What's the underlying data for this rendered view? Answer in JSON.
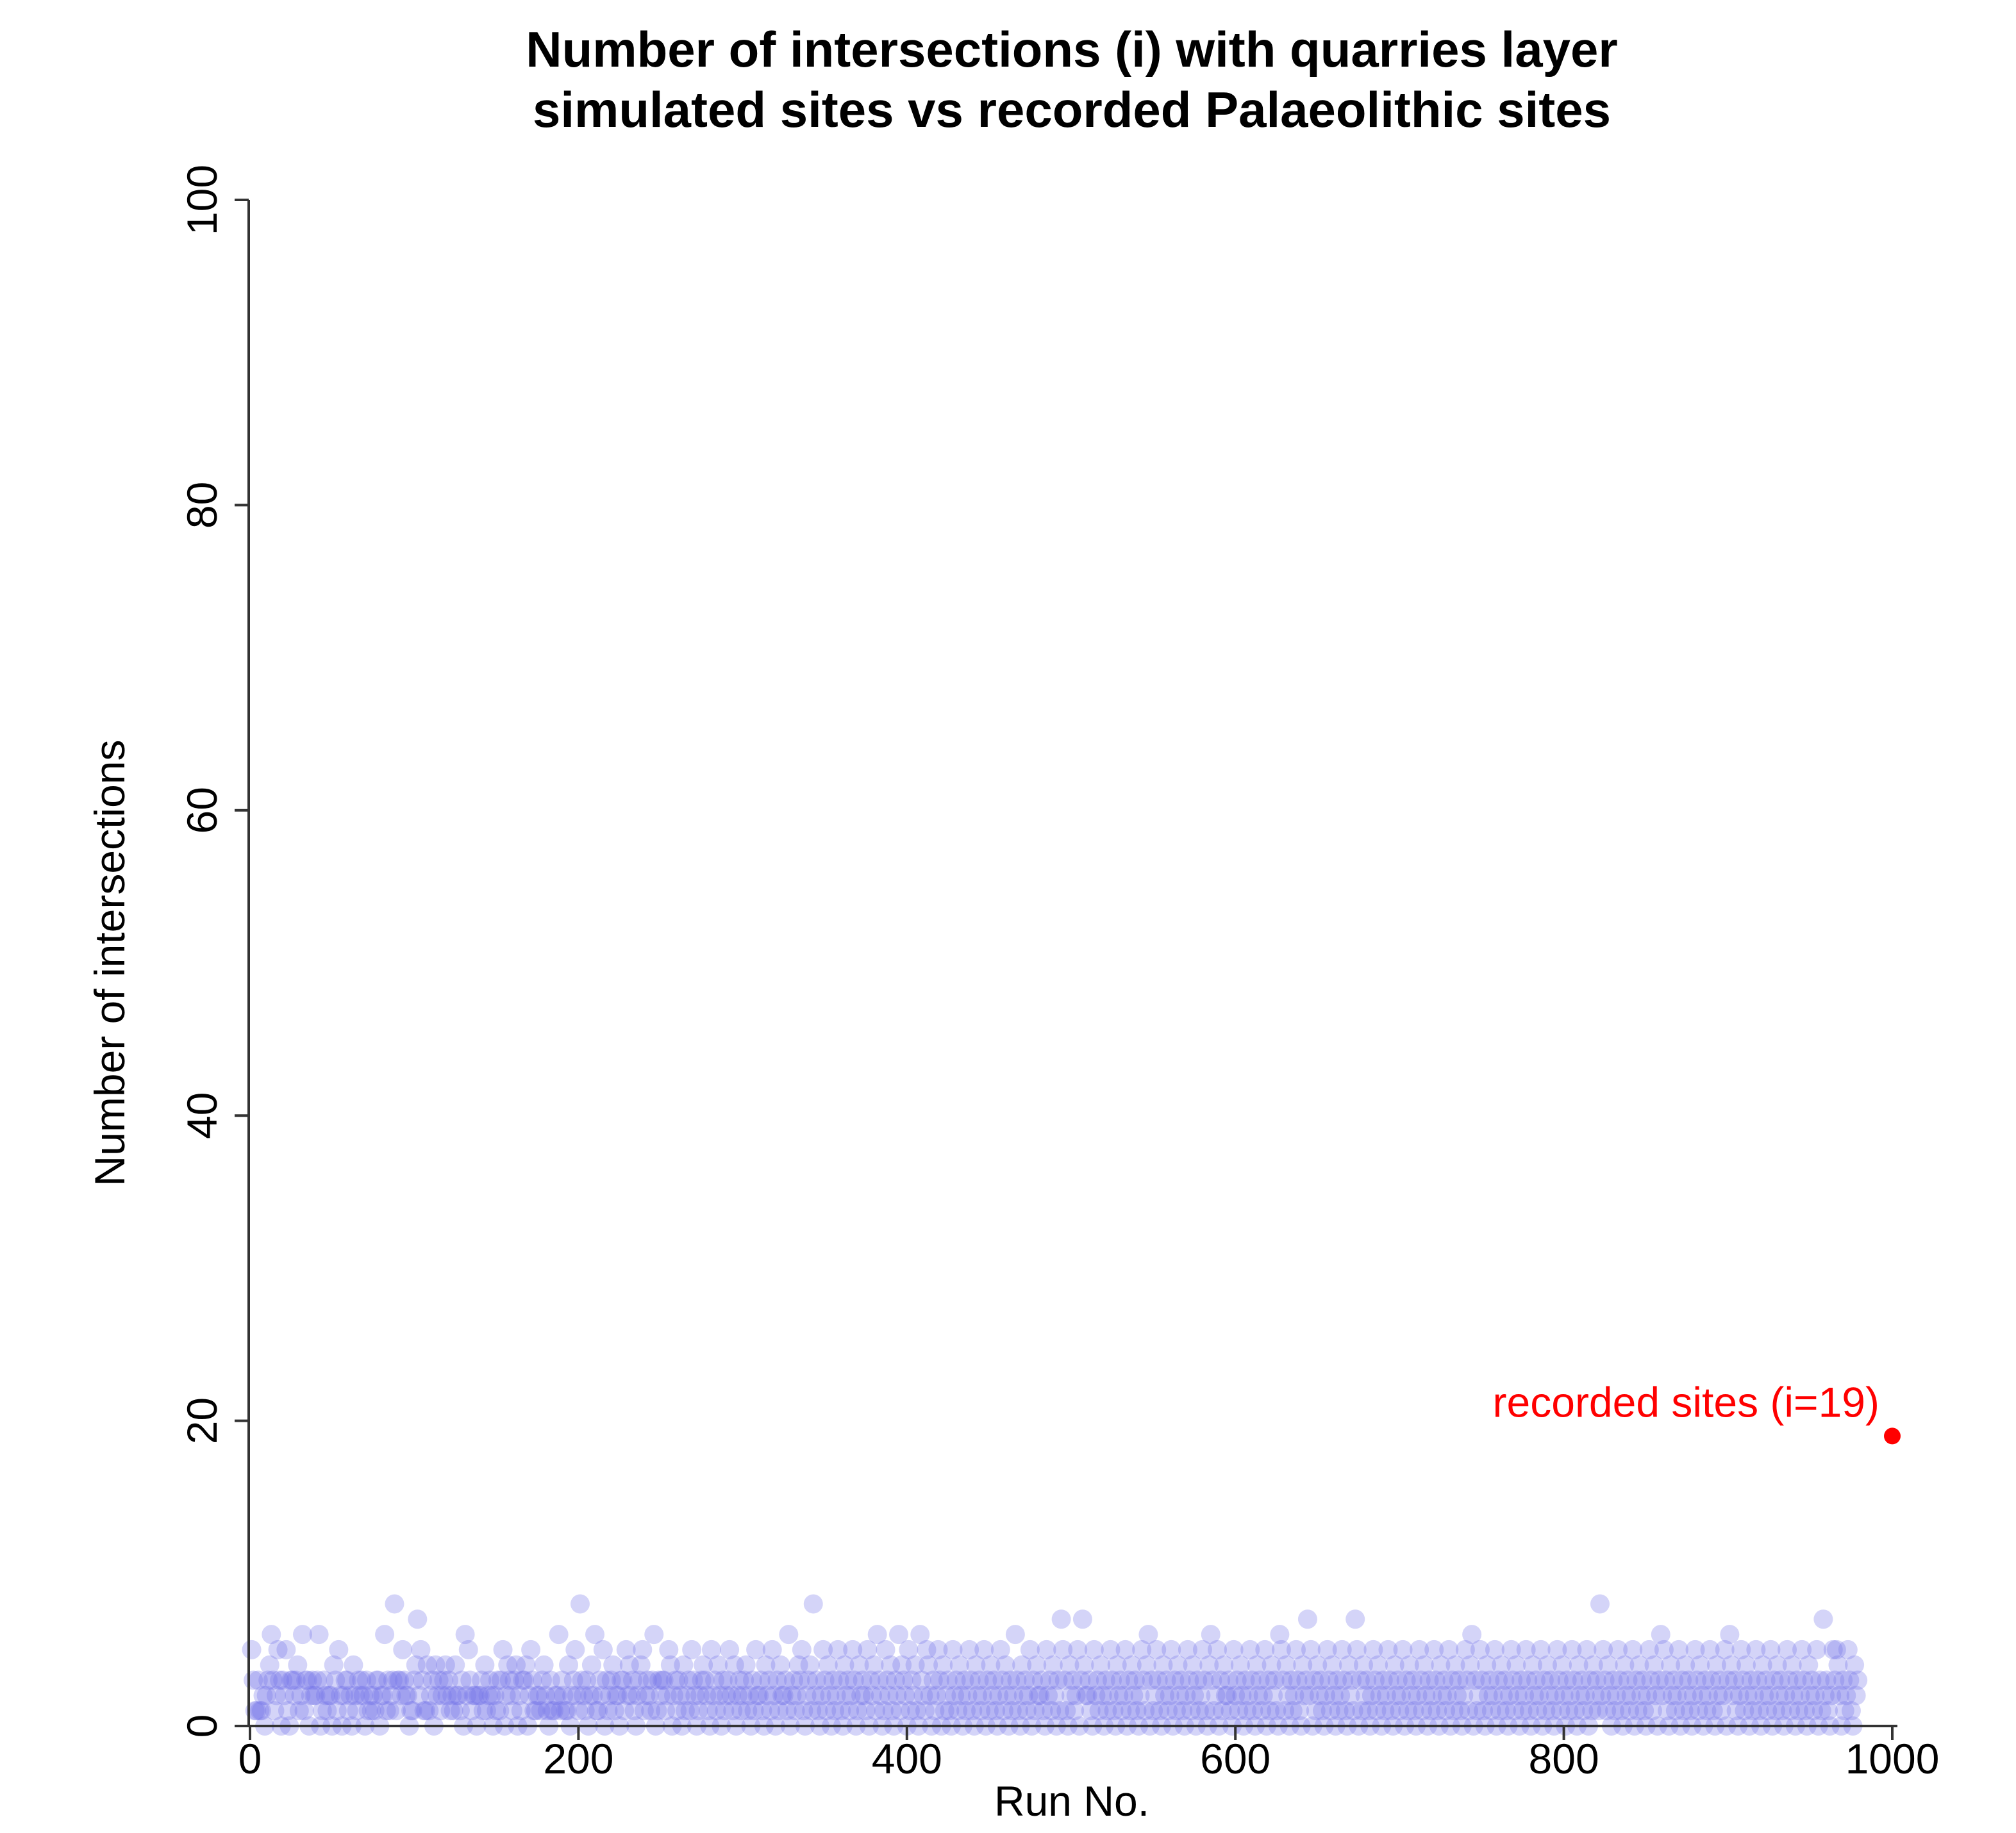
{
  "chart_data": {
    "type": "scatter",
    "title_line1": "Number of intersections (i) with quarries layer",
    "title_line2": "simulated sites vs recorded Palaeolithic sites",
    "xlabel": "Run No.",
    "ylabel": "Number of intersections",
    "xlim": [
      0,
      1000
    ],
    "ylim": [
      0,
      100
    ],
    "x_ticks": [
      0,
      200,
      400,
      600,
      800,
      1000
    ],
    "y_ticks": [
      0,
      20,
      40,
      60,
      80,
      100
    ],
    "grid": false,
    "series": [
      {
        "description": "simulated sites, one value per run (runs 1-1000)",
        "color": "#6f6fe8",
        "opacity": 0.3,
        "values_seed": 19,
        "values_distribution": "mostly 0-6, occasional 7-8",
        "values": [
          5,
          3,
          1,
          1,
          3,
          1,
          1,
          2,
          0,
          2,
          3,
          4,
          6,
          3,
          1,
          2,
          5,
          3,
          0,
          3,
          2,
          5,
          1,
          0,
          3,
          3,
          2,
          3,
          4,
          1,
          2,
          6,
          1,
          3,
          3,
          0,
          2,
          3,
          2,
          2,
          3,
          6,
          0,
          1,
          3,
          2,
          1,
          2,
          2,
          0,
          4,
          3,
          1,
          5,
          2,
          0,
          2,
          3,
          3,
          1,
          2,
          0,
          4,
          2,
          1,
          3,
          2,
          3,
          2,
          0,
          3,
          1,
          2,
          1,
          2,
          1,
          3,
          3,
          0,
          2,
          2,
          6,
          1,
          3,
          1,
          2,
          3,
          8,
          1,
          3,
          3,
          2,
          5,
          3,
          2,
          2,
          0,
          1,
          1,
          3,
          4,
          7,
          2,
          5,
          3,
          1,
          1,
          4,
          1,
          2,
          3,
          0,
          4,
          2,
          3,
          1,
          2,
          3,
          4,
          2,
          3,
          1,
          2,
          1,
          4,
          2,
          2,
          1,
          3,
          0,
          6,
          2,
          5,
          3,
          1,
          2,
          2,
          0,
          2,
          2,
          3,
          1,
          4,
          1,
          2,
          3,
          2,
          0,
          2,
          1,
          3,
          1,
          3,
          5,
          0,
          2,
          4,
          3,
          2,
          1,
          3,
          4,
          0,
          2,
          1,
          3,
          3,
          4,
          0,
          2,
          5,
          3,
          1,
          1,
          2,
          2,
          1,
          3,
          4,
          2,
          1,
          0,
          3,
          1,
          1,
          2,
          2,
          6,
          1,
          3,
          2,
          1,
          1,
          4,
          0,
          2,
          3,
          5,
          2,
          1,
          8,
          3,
          2,
          1,
          3,
          0,
          2,
          4,
          2,
          6,
          1,
          1,
          3,
          2,
          5,
          0,
          3,
          1,
          2,
          3,
          4,
          1,
          2,
          2,
          0,
          3,
          3,
          1,
          5,
          2,
          4,
          2,
          3,
          1,
          0,
          2,
          3,
          4,
          5,
          1,
          2,
          3,
          2,
          1,
          3,
          6,
          0,
          1,
          3,
          2,
          3,
          3,
          1,
          2,
          5,
          4,
          0,
          2,
          3,
          1,
          3,
          2,
          0,
          4,
          1,
          2,
          3,
          1,
          5,
          3,
          2,
          0,
          1,
          2,
          3,
          4,
          3,
          2,
          1,
          0,
          5,
          2,
          3,
          1,
          4,
          2,
          0,
          3,
          1,
          2,
          3,
          5,
          2,
          1,
          4,
          0,
          2,
          3,
          1,
          2,
          3,
          4,
          1,
          2,
          0,
          3,
          1,
          5,
          2,
          2,
          3,
          1,
          0,
          4,
          2,
          3,
          1,
          5,
          2,
          0,
          3,
          1,
          4,
          2,
          2,
          3,
          1,
          6,
          0,
          2,
          3,
          1,
          2,
          4,
          3,
          5,
          1,
          0,
          2,
          3,
          4,
          1,
          8,
          2,
          3,
          1,
          0,
          2,
          5,
          3,
          1,
          4,
          2,
          0,
          3,
          1,
          2,
          5,
          3,
          1,
          0,
          4,
          2,
          3,
          1,
          2,
          5,
          3,
          0,
          1,
          4,
          2,
          3,
          2,
          1,
          5,
          0,
          3,
          2,
          4,
          1,
          6,
          3,
          2,
          0,
          1,
          5,
          3,
          2,
          4,
          1,
          0,
          3,
          2,
          6,
          1,
          4,
          3,
          2,
          0,
          5,
          1,
          3,
          2,
          4,
          1,
          0,
          6,
          3,
          2,
          1,
          5,
          4,
          2,
          0,
          3,
          1,
          2,
          5,
          3,
          0,
          4,
          1,
          2,
          3,
          1,
          0,
          5,
          2,
          3,
          1,
          4,
          2,
          0,
          3,
          1,
          2,
          5,
          3,
          1,
          0,
          4,
          2,
          3,
          1,
          2,
          5,
          0,
          3,
          1,
          4,
          2,
          3,
          1,
          0,
          2,
          5,
          3,
          1,
          4,
          2,
          0,
          3,
          1,
          2,
          6,
          3,
          1,
          0,
          4,
          2,
          3,
          1,
          2,
          5,
          0,
          3,
          1,
          4,
          2,
          2,
          3,
          1,
          0,
          5,
          2,
          3,
          1,
          4,
          2,
          0,
          3,
          1,
          7,
          5,
          3,
          1,
          0,
          4,
          2,
          3,
          1,
          2,
          5,
          0,
          3,
          7,
          4,
          2,
          2,
          3,
          1,
          0,
          5,
          2,
          3,
          1,
          4,
          2,
          0,
          3,
          1,
          2,
          5,
          3,
          1,
          0,
          4,
          2,
          3,
          1,
          2,
          5,
          0,
          3,
          1,
          4,
          2,
          3,
          1,
          0,
          2,
          5,
          3,
          1,
          4,
          6,
          0,
          3,
          1,
          2,
          5,
          3,
          1,
          0,
          4,
          2,
          3,
          1,
          2,
          5,
          0,
          3,
          1,
          4,
          2,
          3,
          1,
          0,
          2,
          5,
          3,
          1,
          4,
          2,
          0,
          3,
          1,
          2,
          5,
          3,
          1,
          0,
          4,
          6,
          3,
          1,
          2,
          5,
          0,
          3,
          1,
          4,
          2,
          2,
          3,
          1,
          0,
          5,
          2,
          3,
          1,
          4,
          2,
          0,
          3,
          1,
          2,
          5,
          3,
          1,
          0,
          4,
          2,
          3,
          1,
          2,
          5,
          0,
          3,
          1,
          4,
          2,
          3,
          1,
          0,
          6,
          5,
          3,
          1,
          4,
          2,
          0,
          3,
          1,
          2,
          5,
          3,
          1,
          0,
          4,
          2,
          3,
          7,
          2,
          5,
          0,
          3,
          1,
          4,
          2,
          3,
          1,
          0,
          2,
          5,
          3,
          1,
          4,
          2,
          0,
          3,
          1,
          2,
          5,
          3,
          1,
          0,
          4,
          2,
          3,
          1,
          7,
          5,
          0,
          3,
          1,
          4,
          2,
          3,
          1,
          0,
          2,
          5,
          3,
          1,
          4,
          2,
          0,
          3,
          1,
          2,
          5,
          3,
          1,
          0,
          4,
          2,
          3,
          1,
          2,
          5,
          0,
          3,
          1,
          4,
          2,
          3,
          1,
          0,
          2,
          5,
          3,
          1,
          4,
          2,
          0,
          3,
          1,
          2,
          5,
          3,
          1,
          0,
          4,
          2,
          3,
          1,
          2,
          5,
          0,
          3,
          1,
          4,
          2,
          3,
          1,
          0,
          2,
          5,
          3,
          1,
          4,
          6,
          0,
          3,
          1,
          2,
          5,
          3,
          1,
          0,
          4,
          2,
          3,
          1,
          2,
          5,
          0,
          3,
          1,
          4,
          2,
          3,
          1,
          0,
          2,
          5,
          3,
          1,
          4,
          2,
          0,
          3,
          1,
          2,
          5,
          3,
          1,
          0,
          4,
          2,
          3,
          1,
          2,
          5,
          0,
          3,
          1,
          4,
          2,
          3,
          1,
          0,
          2,
          5,
          3,
          1,
          4,
          2,
          0,
          3,
          1,
          2,
          5,
          3,
          1,
          0,
          4,
          2,
          3,
          1,
          2,
          5,
          0,
          3,
          1,
          4,
          2,
          3,
          1,
          8,
          2,
          5,
          3,
          1,
          4,
          2,
          0,
          3,
          1,
          2,
          5,
          3,
          1,
          0,
          4,
          2,
          3,
          1,
          2,
          5,
          0,
          3,
          1,
          4,
          2,
          3,
          1,
          0,
          2,
          5,
          3,
          1,
          4,
          2,
          0,
          3,
          6,
          2,
          5,
          3,
          1,
          0,
          4,
          2,
          3,
          1,
          2,
          5,
          0,
          3,
          1,
          4,
          2,
          3,
          1,
          0,
          2,
          5,
          3,
          1,
          4,
          2,
          0,
          3,
          1,
          2,
          5,
          3,
          1,
          0,
          4,
          2,
          3,
          1,
          2,
          5,
          0,
          3,
          6,
          4,
          2,
          3,
          1,
          0,
          2,
          5,
          3,
          1,
          4,
          2,
          0,
          3,
          1,
          2,
          5,
          3,
          1,
          0,
          4,
          2,
          3,
          1,
          2,
          5,
          0,
          3,
          1,
          4,
          2,
          3,
          1,
          0,
          2,
          5,
          3,
          1,
          4,
          2,
          0,
          3,
          1,
          2,
          5,
          3,
          1,
          0,
          4,
          2,
          3,
          1,
          2,
          5,
          0,
          3,
          1,
          7,
          2,
          3,
          1,
          0,
          2,
          5,
          3,
          5,
          4,
          2,
          0,
          3,
          1,
          2,
          5,
          3,
          1,
          0,
          4,
          2,
          3
        ]
      }
    ],
    "highlight": {
      "label": "recorded sites (i=19)",
      "x": 1000,
      "y": 19,
      "color": "#ff0000"
    }
  }
}
